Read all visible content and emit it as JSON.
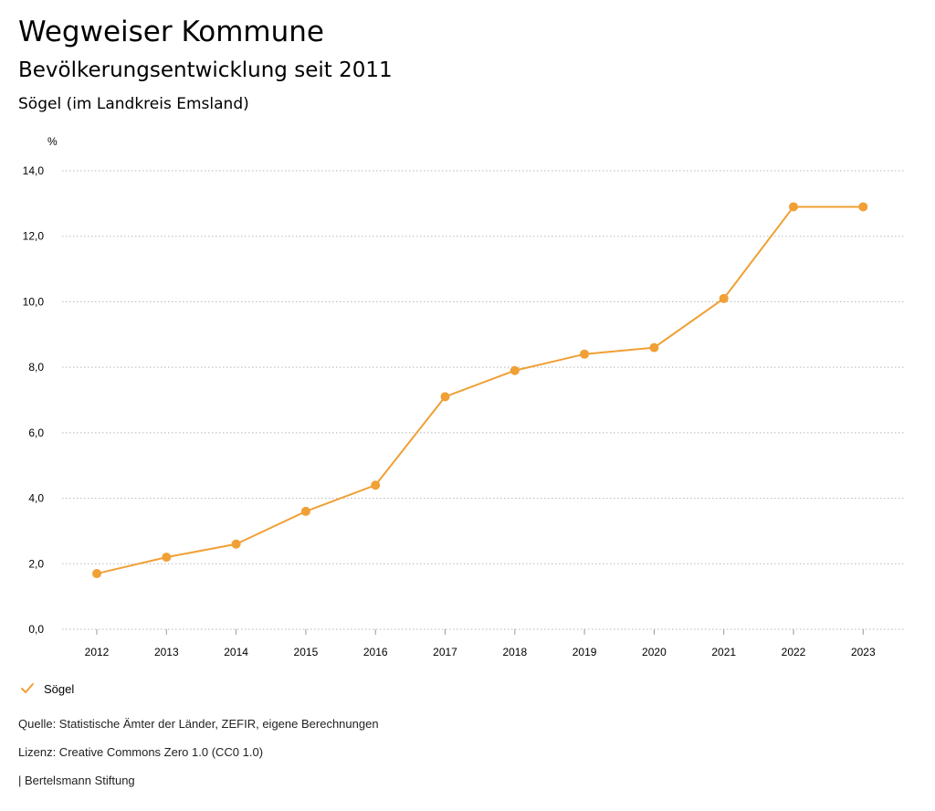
{
  "header": {
    "title": "Wegweiser Kommune",
    "subtitle": "Bevölkerungsentwicklung seit 2011",
    "region": "Sögel (im Landkreis Emsland)"
  },
  "chart_data": {
    "type": "line",
    "title": "Bevölkerungsentwicklung seit 2011",
    "ylabel": "%",
    "xlabel": "",
    "categories": [
      "2012",
      "2013",
      "2014",
      "2015",
      "2016",
      "2017",
      "2018",
      "2019",
      "2020",
      "2021",
      "2022",
      "2023"
    ],
    "series": [
      {
        "name": "Sögel",
        "color": "#f0a035",
        "values": [
          1.7,
          2.2,
          2.6,
          3.6,
          4.4,
          7.1,
          7.9,
          8.4,
          8.6,
          10.1,
          12.9,
          12.9
        ]
      }
    ],
    "ylim": [
      0,
      14
    ],
    "yticks": [
      0,
      2,
      4,
      6,
      8,
      10,
      12,
      14
    ],
    "ytick_labels": [
      "0,0",
      "2,0",
      "4,0",
      "6,0",
      "8,0",
      "10,0",
      "12,0",
      "14,0"
    ],
    "grid": "horizontal dotted",
    "legend_position": "bottom-left"
  },
  "legend": {
    "label": "Sögel",
    "icon": "check-icon"
  },
  "footer": {
    "source": "Quelle: Statistische Ämter der Länder, ZEFIR, eigene Berechnungen",
    "license": "Lizenz: Creative Commons Zero 1.0 (CC0 1.0)",
    "publisher": "| Bertelsmann Stiftung"
  }
}
